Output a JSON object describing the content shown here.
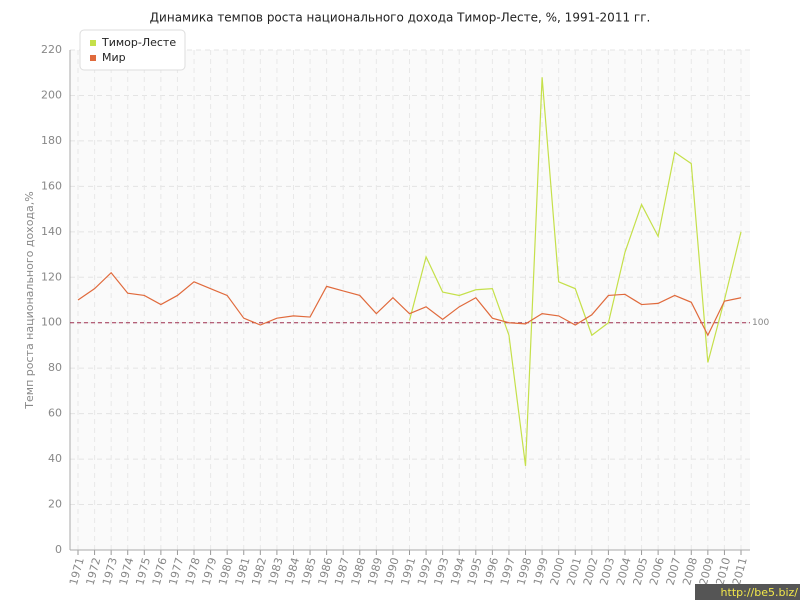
{
  "chart_data": {
    "type": "line",
    "title": "Динамика темпов роста национального дохода Тимор-Лесте, %, 1991-2011 гг.",
    "y_label": "Темп роста национального дохода,%",
    "categories": [
      "1971",
      "1972",
      "1973",
      "1974",
      "1975",
      "1976",
      "1977",
      "1978",
      "1979",
      "1980",
      "1981",
      "1982",
      "1983",
      "1984",
      "1985",
      "1986",
      "1987",
      "1988",
      "1989",
      "1990",
      "1991",
      "1992",
      "1993",
      "1994",
      "1995",
      "1996",
      "1997",
      "1998",
      "1999",
      "2000",
      "2001",
      "2002",
      "2003",
      "2004",
      "2005",
      "2006",
      "2007",
      "2008",
      "2009",
      "2010",
      "2011"
    ],
    "series": [
      {
        "name": "Тимор-Лесте",
        "color": "#c5e04a",
        "values": [
          null,
          null,
          null,
          null,
          null,
          null,
          null,
          null,
          null,
          null,
          null,
          null,
          null,
          null,
          null,
          null,
          null,
          null,
          null,
          null,
          101,
          129,
          113.5,
          112,
          114.5,
          115,
          94.5,
          37,
          208,
          118,
          115,
          94.5,
          100,
          131,
          152,
          138,
          175,
          170,
          82.5,
          110,
          140
        ]
      },
      {
        "name": "Мир",
        "color": "#e06a3c",
        "values": [
          110,
          115,
          122,
          113,
          112,
          108,
          112,
          118,
          115,
          112,
          102,
          99,
          102,
          103,
          102.5,
          116,
          114,
          112,
          104,
          111,
          104,
          107,
          101.5,
          107,
          111,
          102,
          100,
          99.5,
          104,
          103,
          99,
          103.5,
          112,
          112.5,
          108,
          108.5,
          112,
          109,
          94.5,
          109.5,
          111
        ]
      }
    ],
    "ylim": [
      0,
      220
    ],
    "yticks": [
      0,
      20,
      40,
      60,
      80,
      100,
      120,
      140,
      160,
      180,
      200,
      220
    ],
    "grid": true,
    "reference_line": 100,
    "reference_color": "#a03050",
    "legend": "top-left",
    "watermark": "http://be5.biz/"
  }
}
